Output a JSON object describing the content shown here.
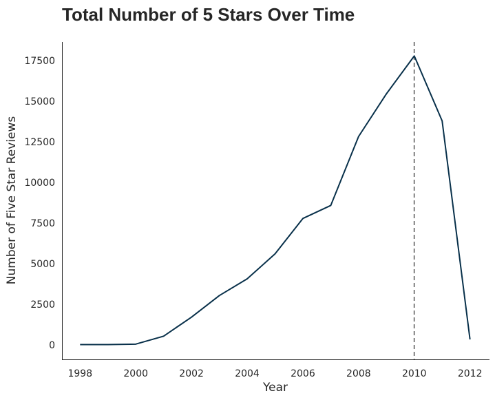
{
  "chart_data": {
    "type": "line",
    "title": "Total Number of 5 Stars Over Time",
    "xlabel": "Year",
    "ylabel": "Number of Five Star Reviews",
    "x": [
      1998,
      1999,
      2000,
      2001,
      2002,
      2003,
      2004,
      2005,
      2006,
      2007,
      2008,
      2009,
      2010,
      2011,
      2012
    ],
    "series": [
      {
        "name": "",
        "values": [
          10,
          10,
          40,
          530,
          1700,
          3030,
          4060,
          5600,
          7780,
          8580,
          12830,
          15460,
          17790,
          13790,
          330
        ]
      }
    ],
    "xticks": [
      1998,
      2000,
      2002,
      2004,
      2006,
      2008,
      2010,
      2012
    ],
    "yticks": [
      0,
      2500,
      5000,
      7500,
      10000,
      12500,
      15000,
      17500
    ],
    "xlim": [
      1997.35,
      2012.7
    ],
    "ylim": [
      -900,
      18650
    ],
    "vline": {
      "x": 2010,
      "style": "dashed",
      "color": "#808080"
    },
    "line_color": "#08304a",
    "grid": false,
    "spines": [
      "left",
      "bottom"
    ]
  }
}
